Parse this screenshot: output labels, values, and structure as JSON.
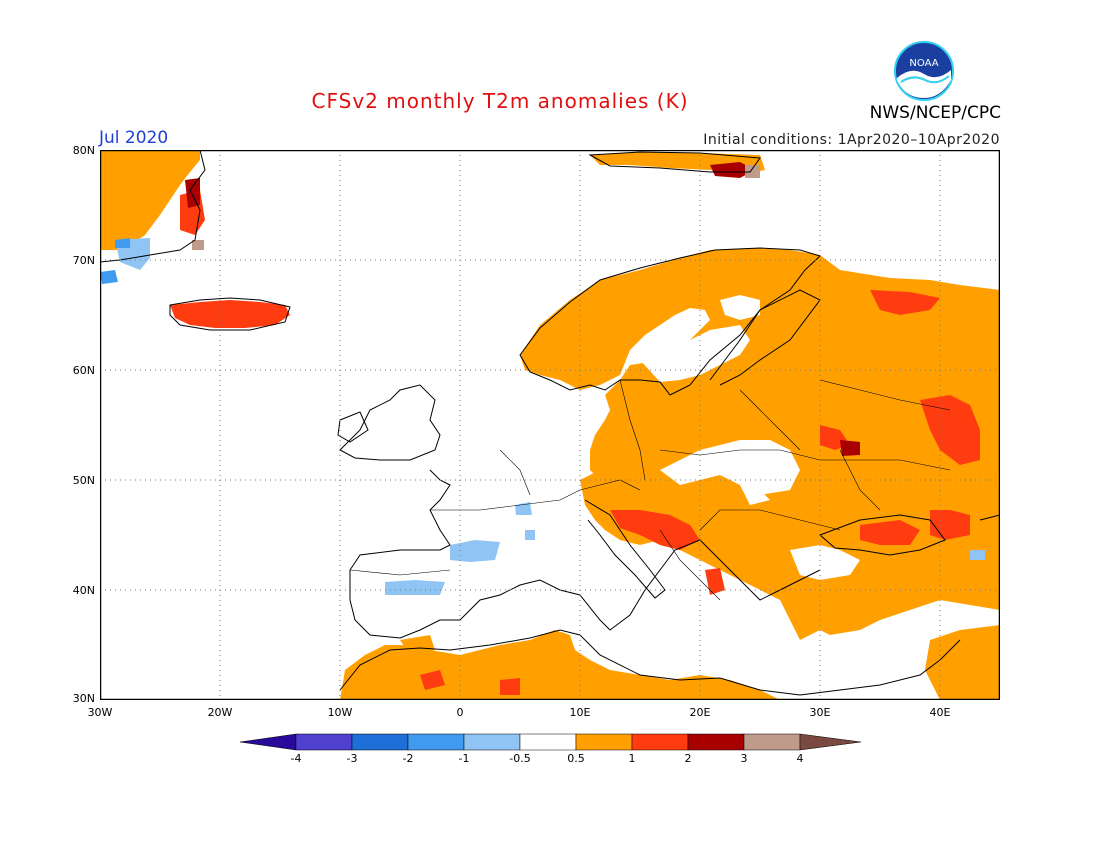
{
  "header": {
    "title": "CFSv2 monthly T2m anomalies (K)",
    "month": "Jul 2020",
    "initial_conditions": "Initial conditions: 1Apr2020–10Apr2020",
    "agency": "NWS/NCEP/CPC",
    "logo_text": "NOAA",
    "logo_icon": "noaa-logo-icon"
  },
  "map": {
    "lon_range": [
      -30,
      45
    ],
    "lat_range": [
      30,
      80
    ],
    "grid": "dotted",
    "lat_labels": [
      "80N",
      "70N",
      "60N",
      "50N",
      "40N",
      "30N"
    ],
    "lon_labels": [
      "30W",
      "20W",
      "10W",
      "0",
      "10E",
      "20E",
      "30E",
      "40E"
    ]
  },
  "colorbar": {
    "labels": [
      "-4",
      "-3",
      "-2",
      "-1",
      "-0.5",
      "0.5",
      "1",
      "2",
      "3",
      "4"
    ],
    "colors": [
      "#2a0a9a",
      "#5040d0",
      "#1e6fd8",
      "#3f9af0",
      "#8fc4f4",
      "#ffffff",
      "#ffa000",
      "#ff3c10",
      "#a80000",
      "#c09a8a",
      "#7a4a40"
    ]
  },
  "anomaly_regions": [
    {
      "name": "greenland",
      "category": "0.5-1",
      "color": "#ffa000"
    },
    {
      "name": "iceland",
      "category": "1-2",
      "color": "#ff3c10"
    },
    {
      "name": "scandinavia-russia",
      "category": "0.5-1",
      "color": "#ffa000"
    },
    {
      "name": "balkans",
      "category": "1-2",
      "color": "#ff3c10"
    },
    {
      "name": "svalbard",
      "category": "2-3",
      "color": "#a80000"
    },
    {
      "name": "iberia",
      "category": "-1 to -0.5",
      "color": "#8fc4f4"
    },
    {
      "name": "north-africa",
      "category": "0.5-1",
      "color": "#ffa000"
    }
  ]
}
